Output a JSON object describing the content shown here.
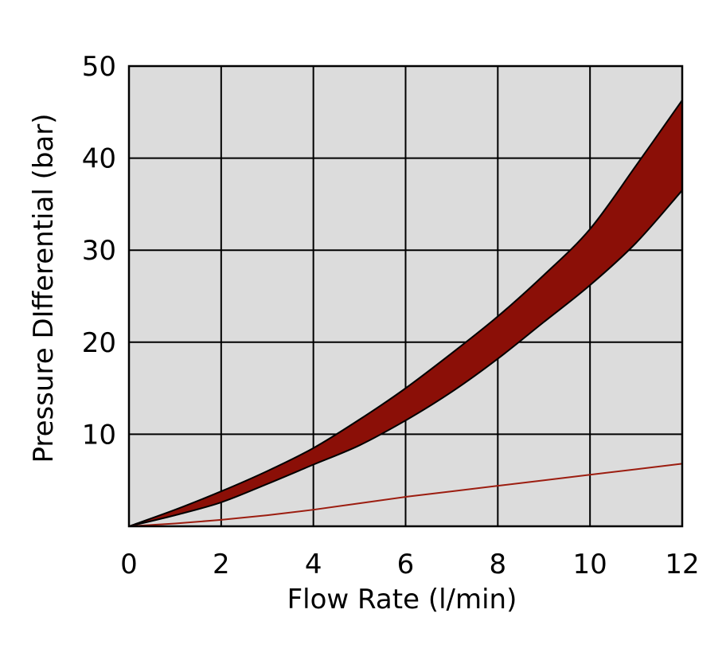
{
  "chart_data": {
    "type": "area",
    "xlabel": "Flow Rate (l/min)",
    "ylabel": "Pressure DIfferential (bar)",
    "xlim": [
      0,
      12
    ],
    "ylim": [
      0,
      50
    ],
    "x_ticks": [
      "0",
      "2",
      "4",
      "6",
      "8",
      "10",
      "12"
    ],
    "y_ticks": [
      "10",
      "20",
      "30",
      "40",
      "50"
    ],
    "grid": true,
    "x": [
      0,
      1,
      2,
      3,
      4,
      5,
      6,
      7,
      8,
      9,
      10,
      11,
      12
    ],
    "band": {
      "upper": [
        0,
        1.8,
        3.8,
        6.0,
        8.5,
        11.6,
        15.0,
        18.8,
        22.8,
        27.3,
        32.3,
        39.2,
        46.3
      ],
      "lower": [
        0,
        1.2,
        2.6,
        4.6,
        6.7,
        8.8,
        11.5,
        14.6,
        18.2,
        22.2,
        26.2,
        30.8,
        36.5
      ]
    },
    "line": {
      "values": [
        0,
        0.3,
        0.7,
        1.2,
        1.8,
        2.5,
        3.2,
        3.8,
        4.4,
        5.0,
        5.6,
        6.2,
        6.8
      ]
    },
    "colors": {
      "plot_background": "#dcdcdc",
      "band_fill": "#8b0f07",
      "band_edge": "#000000",
      "line": "#9c1d10",
      "grid": "#000000"
    }
  }
}
